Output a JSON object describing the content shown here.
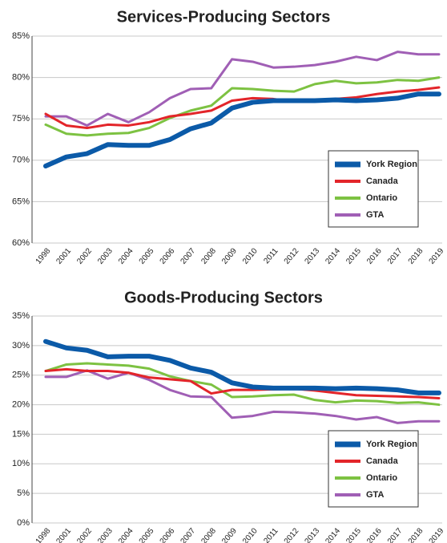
{
  "chart_data": [
    {
      "type": "line",
      "title": "Services-Producing Sectors",
      "categories": [
        "1998",
        "2001",
        "2002",
        "2003",
        "2004",
        "2005",
        "2006",
        "2007",
        "2008",
        "2009",
        "2010",
        "2011",
        "2012",
        "2013",
        "2014",
        "2015",
        "2016",
        "2017",
        "2018",
        "2019"
      ],
      "series": [
        {
          "name": "York Region",
          "color": "#0b5aa8",
          "values": [
            69.3,
            70.4,
            70.8,
            71.9,
            71.8,
            71.8,
            72.5,
            73.8,
            74.5,
            76.3,
            77.0,
            77.2,
            77.2,
            77.2,
            77.3,
            77.2,
            77.3,
            77.5,
            78.0,
            78.0
          ]
        },
        {
          "name": "Canada",
          "color": "#e3252a",
          "values": [
            75.6,
            74.2,
            73.9,
            74.3,
            74.2,
            74.6,
            75.3,
            75.6,
            76.0,
            77.2,
            77.5,
            77.4,
            77.1,
            77.3,
            77.4,
            77.6,
            78.0,
            78.3,
            78.5,
            78.8
          ]
        },
        {
          "name": "Ontario",
          "color": "#7dc242",
          "values": [
            74.3,
            73.2,
            73.0,
            73.2,
            73.3,
            73.9,
            75.1,
            76.0,
            76.6,
            78.7,
            78.6,
            78.4,
            78.3,
            79.2,
            79.6,
            79.3,
            79.4,
            79.7,
            79.6,
            80.0
          ]
        },
        {
          "name": "GTA",
          "color": "#a05fb5",
          "values": [
            75.3,
            75.3,
            74.2,
            75.6,
            74.6,
            75.8,
            77.5,
            78.6,
            78.7,
            82.2,
            81.9,
            81.2,
            81.3,
            81.5,
            81.9,
            82.5,
            82.1,
            83.1,
            82.8,
            82.8
          ]
        }
      ],
      "ylim": [
        60,
        85
      ],
      "yticks": [
        {
          "value": 60,
          "label": "60%"
        },
        {
          "value": 65,
          "label": "65%"
        },
        {
          "value": 70,
          "label": "70%"
        },
        {
          "value": 75,
          "label": "75%"
        },
        {
          "value": 80,
          "label": "80%"
        },
        {
          "value": 85,
          "label": "85%"
        }
      ],
      "grid": true,
      "legend": "lower right"
    },
    {
      "type": "line",
      "title": "Goods-Producing Sectors",
      "categories": [
        "1998",
        "2001",
        "2002",
        "2003",
        "2004",
        "2005",
        "2006",
        "2007",
        "2008",
        "2009",
        "2010",
        "2011",
        "2012",
        "2013",
        "2014",
        "2015",
        "2016",
        "2017",
        "2018",
        "2019"
      ],
      "series": [
        {
          "name": "York Region",
          "color": "#0b5aa8",
          "values": [
            30.7,
            29.6,
            29.2,
            28.1,
            28.2,
            28.2,
            27.5,
            26.2,
            25.5,
            23.7,
            23.0,
            22.8,
            22.8,
            22.8,
            22.7,
            22.8,
            22.7,
            22.5,
            22.0,
            22.0
          ]
        },
        {
          "name": "Canada",
          "color": "#e3252a",
          "values": [
            25.7,
            26.0,
            25.7,
            25.7,
            25.4,
            24.6,
            24.3,
            24.0,
            21.9,
            22.5,
            22.5,
            22.6,
            22.7,
            22.4,
            22.0,
            21.6,
            21.5,
            21.4,
            21.3,
            21.1
          ]
        },
        {
          "name": "Ontario",
          "color": "#7dc242",
          "values": [
            25.7,
            26.8,
            27.0,
            26.8,
            26.6,
            26.1,
            24.8,
            24.0,
            23.4,
            21.3,
            21.4,
            21.6,
            21.7,
            20.8,
            20.4,
            20.7,
            20.6,
            20.3,
            20.4,
            20.0
          ]
        },
        {
          "name": "GTA",
          "color": "#a05fb5",
          "values": [
            24.7,
            24.7,
            25.8,
            24.4,
            25.4,
            24.2,
            22.5,
            21.4,
            21.3,
            17.8,
            18.1,
            18.8,
            18.7,
            18.5,
            18.1,
            17.5,
            17.9,
            16.9,
            17.2,
            17.2
          ]
        }
      ],
      "ylim": [
        0,
        35
      ],
      "yticks": [
        {
          "value": 0,
          "label": "0%"
        },
        {
          "value": 5,
          "label": "5%"
        },
        {
          "value": 10,
          "label": "10%"
        },
        {
          "value": 15,
          "label": "15%"
        },
        {
          "value": 20,
          "label": "20%"
        },
        {
          "value": 25,
          "label": "25%"
        },
        {
          "value": 30,
          "label": "30%"
        },
        {
          "value": 35,
          "label": "35%"
        }
      ],
      "grid": true,
      "legend": "lower right"
    }
  ]
}
